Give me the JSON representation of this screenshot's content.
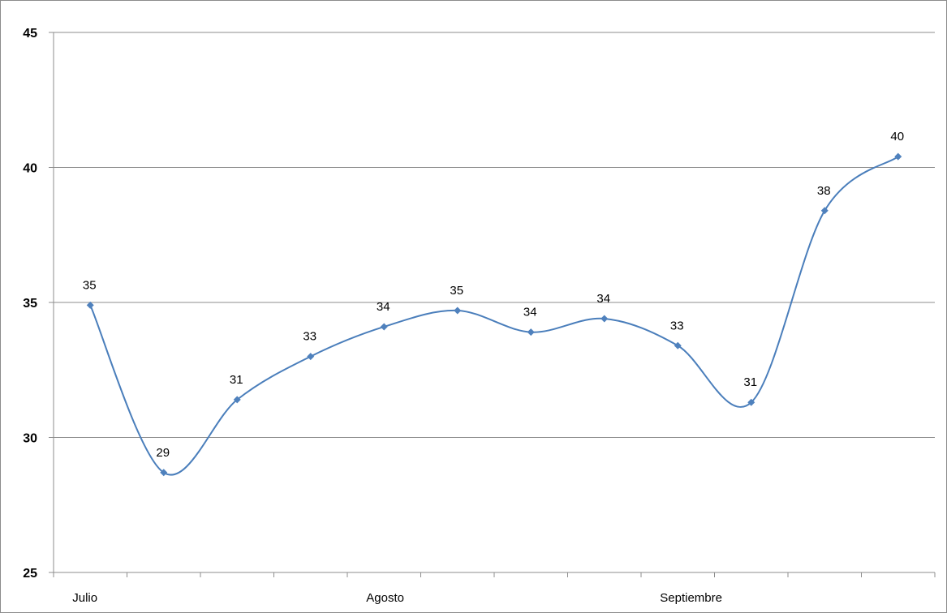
{
  "chart_data": {
    "type": "line",
    "title": "",
    "xlabel": "",
    "ylabel": "",
    "ylim": [
      25,
      45
    ],
    "yticks": [
      25,
      30,
      35,
      40,
      45
    ],
    "grid": true,
    "legend": "none",
    "smooth": true,
    "month_labels": [
      {
        "text": "Julio",
        "index": 0
      },
      {
        "text": "Agosto",
        "index": 4
      },
      {
        "text": "Septiembre",
        "index": 8
      }
    ],
    "series": [
      {
        "color": "#4a7ebb",
        "marker_color": "#4f81bd",
        "values": [
          34.9,
          28.7,
          31.4,
          33.0,
          34.1,
          34.7,
          33.9,
          34.4,
          33.4,
          31.3,
          38.4,
          40.4
        ],
        "data_labels": [
          "35",
          "29",
          "31",
          "33",
          "34",
          "35",
          "34",
          "34",
          "33",
          "31",
          "38",
          "40"
        ]
      }
    ]
  }
}
